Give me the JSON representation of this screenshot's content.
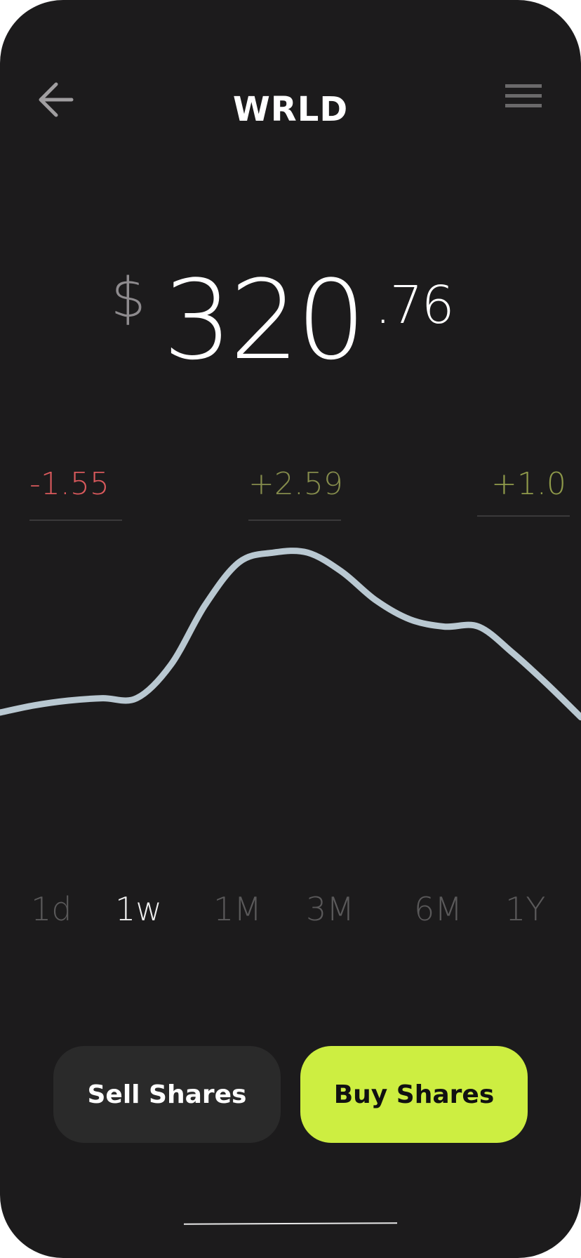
{
  "header": {
    "title": "WRLD",
    "back_icon": "arrow-left-icon",
    "menu_icon": "hamburger-menu-icon"
  },
  "price": {
    "currency": "$",
    "integer": "320",
    "decimal": ".76"
  },
  "changes": [
    {
      "value": "-1.55",
      "color": "#d9595c"
    },
    {
      "value": "+2.59",
      "color": "#858c4c"
    },
    {
      "value": "+1.0",
      "color": "#8f9a4a"
    }
  ],
  "chart_data": {
    "type": "line",
    "series": [
      {
        "values": [
          25,
          28,
          30,
          31,
          31,
          45,
          70,
          88,
          92,
          92,
          84,
          72,
          64,
          61,
          61,
          50,
          37,
          23
        ]
      }
    ],
    "line_color": "#b9c8d1",
    "grid": false
  },
  "time_ranges": {
    "items": [
      "1d",
      "1w",
      "1M",
      "3M",
      "6M",
      "1Y"
    ],
    "selected": "1w"
  },
  "actions": {
    "sell_label": "Sell Shares",
    "buy_label": "Buy Shares",
    "buy_color": "#cdee41"
  }
}
